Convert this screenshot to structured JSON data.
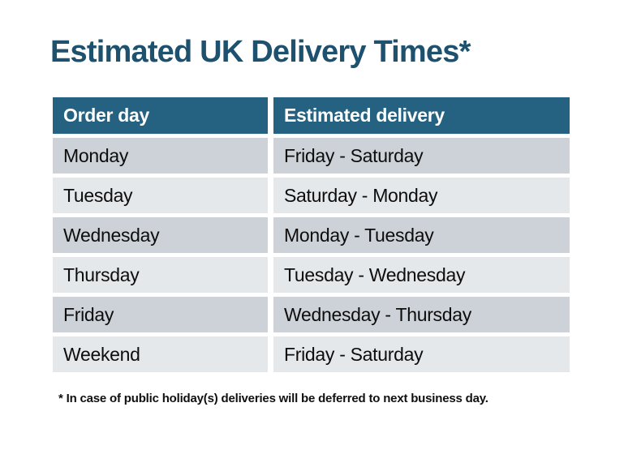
{
  "page": {
    "title": "Estimated UK Delivery Times*"
  },
  "table": {
    "headers": {
      "order_day": "Order day",
      "estimated_delivery": "Estimated delivery"
    },
    "rows": [
      {
        "order_day": "Monday",
        "estimated_delivery": "Friday - Saturday"
      },
      {
        "order_day": "Tuesday",
        "estimated_delivery": "Saturday - Monday"
      },
      {
        "order_day": "Wednesday",
        "estimated_delivery": "Monday - Tuesday"
      },
      {
        "order_day": "Thursday",
        "estimated_delivery": "Tuesday - Wednesday"
      },
      {
        "order_day": "Friday",
        "estimated_delivery": "Wednesday - Thursday"
      },
      {
        "order_day": "Weekend",
        "estimated_delivery": "Friday - Saturday"
      }
    ]
  },
  "footnote": "* In case of public holiday(s) deliveries will be deferred to next business day.",
  "colors": {
    "title_text": "#1e516e",
    "header_bg": "#256180",
    "header_text": "#ffffff",
    "row_dark": "#cdd2d9",
    "row_light": "#e5e8eb",
    "cell_text": "#0d0d0d",
    "background": "#ffffff"
  }
}
